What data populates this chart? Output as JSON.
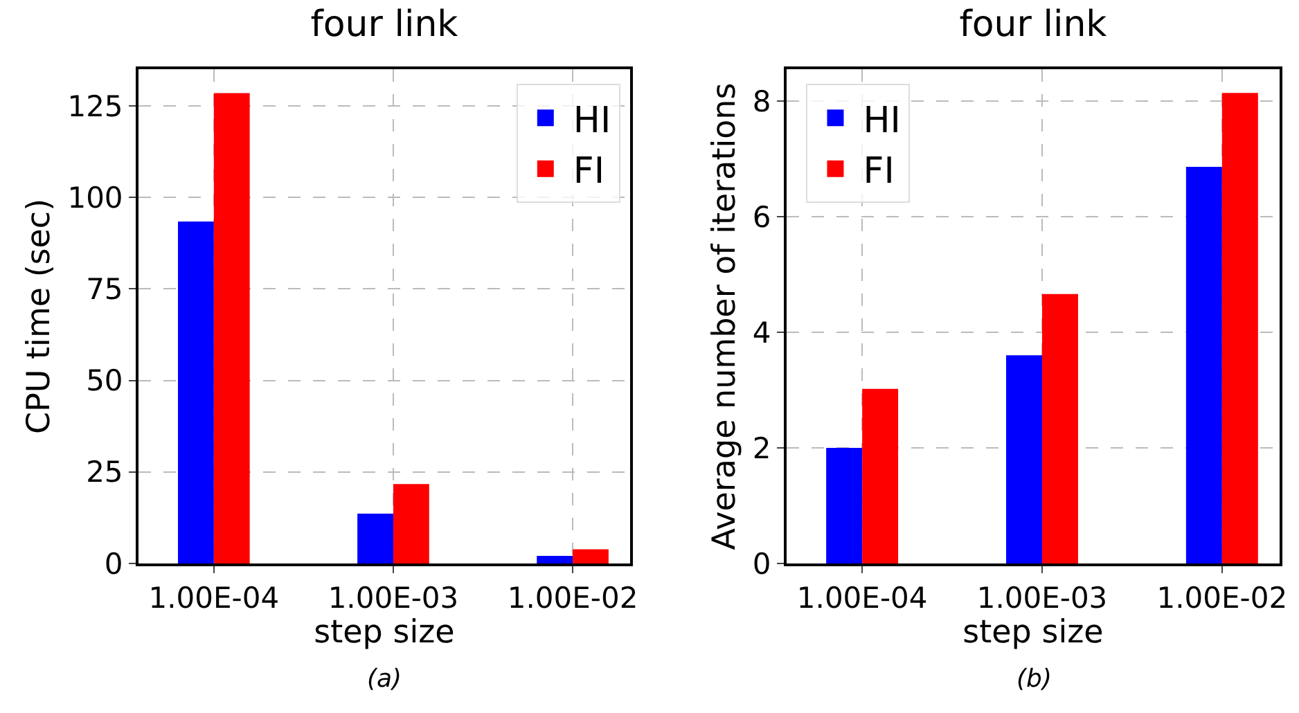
{
  "chart_data": [
    {
      "type": "bar",
      "title": "four link",
      "xlabel": "step size",
      "ylabel": "CPU time (sec)",
      "categories": [
        "1.00E-04",
        "1.00E-03",
        "1.00E-02"
      ],
      "series": [
        {
          "name": "HI",
          "color": "#0000ff",
          "values": [
            93.4,
            13.6,
            2.1
          ]
        },
        {
          "name": "FI",
          "color": "#ff0000",
          "values": [
            128.5,
            21.7,
            3.9
          ]
        }
      ],
      "ylim": [
        0,
        135
      ],
      "yticks": [
        0,
        25,
        50,
        75,
        100,
        125
      ],
      "grid": true,
      "legend": "top right",
      "annotations": [
        "(a)"
      ]
    },
    {
      "type": "bar",
      "title": "four link",
      "xlabel": "step size",
      "ylabel": "Average number of iterations",
      "categories": [
        "1.00E-04",
        "1.00E-03",
        "1.00E-02"
      ],
      "series": [
        {
          "name": "HI",
          "color": "#0000ff",
          "values": [
            2.0,
            3.6,
            6.86
          ]
        },
        {
          "name": "FI",
          "color": "#ff0000",
          "values": [
            3.02,
            4.66,
            8.14
          ]
        }
      ],
      "ylim": [
        0,
        8.55
      ],
      "yticks": [
        0,
        2,
        4,
        6,
        8
      ],
      "grid": true,
      "legend": "top left",
      "annotations": [
        "(b)"
      ]
    }
  ]
}
